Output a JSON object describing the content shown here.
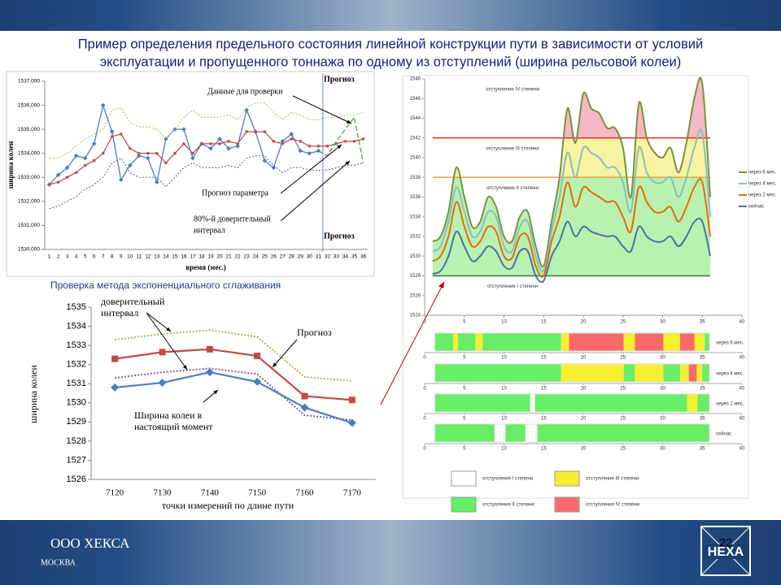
{
  "title": [
    "Пример определения предельного состояния линейной конструкции пути в зависимости от условий",
    "эксплуатации и пропущенного тоннажа по одному из отступлений (ширина рельсовой колеи)"
  ],
  "footer": {
    "company": "ООО ХЕКСА",
    "city": "МОСКВА",
    "page": "22",
    "logo": "HEXA"
  },
  "chart_data": [
    {
      "type": "line",
      "ylabel": "ширина колеи",
      "xlabel": "время (мес.)",
      "categories": [
        "1",
        "2",
        "3",
        "4",
        "5",
        "6",
        "7",
        "8",
        "9",
        "10",
        "11",
        "12",
        "13",
        "14",
        "15",
        "16",
        "17",
        "18",
        "19",
        "20",
        "21",
        "22",
        "23",
        "24",
        "25",
        "26",
        "27",
        "28",
        "29",
        "30",
        "31",
        "32",
        "33",
        "34",
        "35",
        "36"
      ],
      "ylim": [
        1530,
        1537
      ],
      "yticks": [
        {
          "value": 1530,
          "label": "1530,000"
        },
        {
          "value": 1531,
          "label": "1531,000"
        },
        {
          "value": 1532,
          "label": "1532,000"
        },
        {
          "value": 1533,
          "label": "1533,000"
        },
        {
          "value": 1534,
          "label": "1534,000"
        },
        {
          "value": 1535,
          "label": "1535,000"
        },
        {
          "value": 1536,
          "label": "1536,000"
        },
        {
          "value": 1537,
          "label": "1537,000"
        }
      ],
      "series": [
        {
          "color": "#4a7ebb",
          "style": "solid",
          "marker": "diamond",
          "values": [
            1532.7,
            1533.1,
            1533.4,
            1533.9,
            1533.8,
            1534.4,
            1536.0,
            1534.9,
            1532.9,
            1533.5,
            1533.9,
            1533.8,
            1532.8,
            1534.6,
            1535.0,
            1535.0,
            1533.8,
            1534.4,
            1534.2,
            1534.6,
            1534.2,
            1534.3,
            1535.8,
            1534.9,
            1533.7,
            1533.4,
            1534.5,
            1534.8,
            1534.1,
            1534.0,
            1534.1,
            null,
            null,
            null,
            null,
            null
          ]
        },
        {
          "color": "#c0504d",
          "style": "solid",
          "marker": "circle",
          "values": [
            1532.7,
            1532.8,
            1533.0,
            1533.2,
            1533.5,
            1533.7,
            1534.0,
            1534.7,
            1534.8,
            1534.2,
            1534.0,
            1534.0,
            1534.0,
            1533.6,
            1534.0,
            1534.4,
            1534.0,
            1534.4,
            1534.4,
            1534.4,
            1534.5,
            1534.4,
            1534.9,
            1534.9,
            1534.9,
            1534.5,
            1534.4,
            1534.6,
            1534.5,
            1534.3,
            1534.3,
            1534.3,
            1534.4,
            1534.5,
            1534.5,
            1534.6
          ]
        },
        {
          "color": "#b5c96a",
          "style": "dotted",
          "values": [
            1533.8,
            1533.8,
            1534.0,
            1534.3,
            1534.6,
            1534.8,
            1535.0,
            1535.8,
            1535.9,
            1535.3,
            1535.1,
            1535.1,
            1535.0,
            1534.6,
            1535.0,
            1535.5,
            1535.8,
            1535.5,
            1535.5,
            1535.5,
            1535.6,
            1535.4,
            1535.9,
            1536.1,
            1536.1,
            1535.7,
            1535.4,
            1535.7,
            1535.6,
            1535.4,
            1535.4,
            1535.5,
            1535.5,
            1535.6,
            1535.6,
            1535.7
          ]
        },
        {
          "color": "#7f62a1",
          "style": "dotted",
          "values": [
            1531.7,
            1531.8,
            1532.0,
            1532.2,
            1532.5,
            1532.7,
            1533.0,
            1533.6,
            1533.8,
            1533.2,
            1533.0,
            1533.0,
            1533.0,
            1532.6,
            1533.0,
            1533.4,
            1533.6,
            1533.4,
            1533.4,
            1533.4,
            1533.5,
            1533.4,
            1533.8,
            1533.9,
            1533.9,
            1533.5,
            1533.2,
            1533.4,
            1533.4,
            1533.3,
            1533.3,
            1533.3,
            1533.4,
            1533.5,
            1533.5,
            1533.6
          ]
        },
        {
          "color": "#3a9a3a",
          "style": "dashed",
          "values": [
            null,
            null,
            null,
            null,
            null,
            null,
            null,
            null,
            null,
            null,
            null,
            null,
            null,
            null,
            null,
            null,
            null,
            null,
            null,
            null,
            null,
            null,
            null,
            null,
            null,
            null,
            null,
            null,
            null,
            null,
            1534.1,
            1533.9,
            1534.5,
            1535.0,
            1535.5,
            1533.6
          ]
        }
      ],
      "annotations": [
        [
          "Данные для проверки"
        ],
        [
          "Прогноз параметра"
        ],
        [
          "80%-й доверительный",
          "интервал"
        ],
        [
          "Прогноз"
        ],
        [
          "Прогноз"
        ]
      ]
    },
    {
      "type": "line",
      "title": "Проверка метода экспоненциального сглаживания",
      "ylabel": "ширина колеи",
      "xlabel": "точки измерений по длине пути",
      "categories": [
        "7120",
        "7130",
        "7140",
        "7150",
        "7160",
        "7170"
      ],
      "ylim": [
        1526,
        1535
      ],
      "yticks": [
        1526,
        1527,
        1528,
        1529,
        1530,
        1531,
        1532,
        1533,
        1534,
        1535
      ],
      "series": [
        {
          "color": "#be4b48",
          "style": "solid",
          "marker": "square",
          "values": [
            1532.3,
            1532.65,
            1532.8,
            1532.45,
            1530.35,
            1530.15
          ]
        },
        {
          "color": "#4a7ebb",
          "style": "solid",
          "marker": "diamond",
          "values": [
            1530.8,
            1531.05,
            1531.6,
            1531.1,
            1529.75,
            1528.95
          ]
        },
        {
          "color": "#9bbb59",
          "style": "dotted",
          "values": [
            1533.3,
            1533.6,
            1533.8,
            1533.45,
            1531.35,
            1531.15
          ]
        },
        {
          "color": "#7f62a1",
          "style": "dotted",
          "values": [
            1531.3,
            1531.6,
            1531.8,
            1531.5,
            1529.35,
            1529.1
          ]
        }
      ],
      "annotations": [
        [
          "доверительный",
          "интервал"
        ],
        [
          "Прогноз"
        ],
        [
          "Ширина колеи в",
          "настоящий момент"
        ]
      ]
    },
    {
      "type": "area",
      "x": [
        1,
        2,
        3,
        4,
        5,
        6,
        7,
        8,
        9,
        10,
        11,
        12,
        13,
        14,
        15,
        16,
        17,
        18,
        19,
        20,
        21,
        22,
        23,
        24,
        25,
        26,
        27,
        28,
        29,
        30,
        31,
        32,
        33,
        34,
        35,
        36
      ],
      "xlim": [
        0,
        40
      ],
      "xticks": [
        0,
        5,
        10,
        15,
        20,
        25,
        30,
        35,
        40
      ],
      "ylim": [
        1524,
        1548
      ],
      "yticks": [
        1524,
        1526,
        1528,
        1530,
        1532,
        1534,
        1536,
        1538,
        1540,
        1542,
        1544,
        1546,
        1548
      ],
      "series": [
        {
          "name": "через 6 мес.",
          "color": "#77933c",
          "values": [
            1531.5,
            1532,
            1534.5,
            1539,
            1536,
            1533,
            1533.5,
            1536,
            1535,
            1532,
            1531.5,
            1534,
            1534.5,
            1531,
            1529,
            1533.5,
            1538,
            1545,
            1541.5,
            1546.5,
            1545,
            1544.5,
            1543,
            1543,
            1541,
            1536,
            1545.5,
            1542,
            1540.5,
            1540,
            1541,
            1538.5,
            1541.5,
            1546,
            1547.5,
            1536
          ]
        },
        {
          "name": "через 4 мес.",
          "color": "#8cbcc0",
          "values": [
            1530.5,
            1531,
            1533.5,
            1537,
            1534.5,
            1532,
            1532.5,
            1534.5,
            1534,
            1531,
            1530.5,
            1533,
            1533.5,
            1530,
            1528.5,
            1532.5,
            1536,
            1540.5,
            1538,
            1541,
            1540.5,
            1540,
            1539,
            1539,
            1537.5,
            1534.5,
            1541,
            1538.5,
            1537.5,
            1537.5,
            1538,
            1536,
            1538,
            1541,
            1542.5,
            1534
          ]
        },
        {
          "name": "через 2 мес.",
          "color": "#e46c0a",
          "values": [
            1529.5,
            1530,
            1532,
            1535.5,
            1533,
            1531,
            1531.5,
            1533,
            1532.5,
            1530,
            1529.8,
            1532,
            1532,
            1529,
            1528,
            1531.5,
            1534,
            1537.5,
            1535,
            1537,
            1536.5,
            1536,
            1535.5,
            1535.5,
            1534,
            1532.5,
            1537,
            1535.5,
            1534.5,
            1534.5,
            1535,
            1533.5,
            1535,
            1537,
            1537.5,
            1532
          ]
        },
        {
          "name": "сейчас",
          "color": "#4f6fa8",
          "values": [
            1528.2,
            1528.5,
            1530,
            1532.5,
            1531,
            1529.5,
            1530,
            1531,
            1530.5,
            1529,
            1528.8,
            1530.5,
            1530.5,
            1528,
            1527.5,
            1530,
            1531.5,
            1533.5,
            1532,
            1533,
            1532.5,
            1532.2,
            1532,
            1532,
            1531,
            1530.5,
            1533,
            1532,
            1531.5,
            1531.5,
            1532,
            1531,
            1532,
            1533.5,
            1533.5,
            1530
          ]
        }
      ],
      "thresholds": [
        {
          "value": 1528,
          "color": "#2e7d32"
        },
        {
          "value": 1538,
          "color": "#f0a040"
        },
        {
          "value": 1542,
          "color": "#e03030"
        }
      ],
      "zone_labels": [
        "отступление I степени",
        "отступление II степени",
        "отступление III степени",
        "отступление IV степени"
      ],
      "zone_fills": [
        "#ffffff",
        "#b9f2b0",
        "#f6f3a2",
        "#f6b8c4"
      ]
    },
    {
      "type": "strip",
      "xlim": [
        0,
        40
      ],
      "xticks": [
        0,
        5,
        10,
        15,
        20,
        25,
        30,
        35,
        40
      ],
      "rows": [
        {
          "name": "через 6 мес.",
          "segments": [
            {
              "start": 1.3,
              "end": 3.6,
              "color": "#66ee66"
            },
            {
              "start": 3.6,
              "end": 4.2,
              "color": "#f8ee30"
            },
            {
              "start": 4.2,
              "end": 6.4,
              "color": "#66ee66"
            },
            {
              "start": 6.4,
              "end": 7.3,
              "color": "#f8ee30"
            },
            {
              "start": 7.3,
              "end": 17.2,
              "color": "#66ee66"
            },
            {
              "start": 17.2,
              "end": 18.2,
              "color": "#f8ee30"
            },
            {
              "start": 18.2,
              "end": 25.1,
              "color": "#f86a6a"
            },
            {
              "start": 25.1,
              "end": 26.5,
              "color": "#f8ee30"
            },
            {
              "start": 26.5,
              "end": 30.1,
              "color": "#f86a6a"
            },
            {
              "start": 30.1,
              "end": 32.2,
              "color": "#f8ee30"
            },
            {
              "start": 32.2,
              "end": 34,
              "color": "#f86a6a"
            },
            {
              "start": 34,
              "end": 35.3,
              "color": "#f8ee30"
            },
            {
              "start": 35.3,
              "end": 35.9,
              "color": "#66ee66"
            }
          ]
        },
        {
          "name": "через 4 мес.",
          "segments": [
            {
              "start": 1.3,
              "end": 17.2,
              "color": "#66ee66"
            },
            {
              "start": 17.2,
              "end": 25.1,
              "color": "#f8ee30"
            },
            {
              "start": 25.1,
              "end": 26.5,
              "color": "#66ee66"
            },
            {
              "start": 26.5,
              "end": 30.1,
              "color": "#f8ee30"
            },
            {
              "start": 30.1,
              "end": 32.2,
              "color": "#66ee66"
            },
            {
              "start": 32.2,
              "end": 33.3,
              "color": "#f8ee30"
            },
            {
              "start": 33.3,
              "end": 34.3,
              "color": "#f86a6a"
            },
            {
              "start": 34.3,
              "end": 35,
              "color": "#f8ee30"
            },
            {
              "start": 35,
              "end": 35.9,
              "color": "#66ee66"
            }
          ]
        },
        {
          "name": "через 2 мес.",
          "segments": [
            {
              "start": 1.3,
              "end": 13.3,
              "color": "#66ee66"
            },
            {
              "start": 13.3,
              "end": 13.9,
              "color": "#ffffff"
            },
            {
              "start": 13.9,
              "end": 33.1,
              "color": "#66ee66"
            },
            {
              "start": 33.1,
              "end": 34.4,
              "color": "#f8ee30"
            },
            {
              "start": 34.4,
              "end": 35.9,
              "color": "#66ee66"
            }
          ]
        },
        {
          "name": "сейчас",
          "segments": [
            {
              "start": 1.3,
              "end": 8.8,
              "color": "#66ee66"
            },
            {
              "start": 8.8,
              "end": 10.2,
              "color": "#ffffff"
            },
            {
              "start": 10.2,
              "end": 12.7,
              "color": "#66ee66"
            },
            {
              "start": 12.7,
              "end": 14.2,
              "color": "#ffffff"
            },
            {
              "start": 14.2,
              "end": 35.9,
              "color": "#66ee66"
            }
          ]
        }
      ],
      "legend": [
        {
          "label": "отступление I степени",
          "color": "#ffffff"
        },
        {
          "label": "отступление III степени",
          "color": "#f8ee30"
        },
        {
          "label": "отступление II степени",
          "color": "#66ee66"
        },
        {
          "label": "отступление IV степени",
          "color": "#f86a6a"
        }
      ]
    }
  ]
}
